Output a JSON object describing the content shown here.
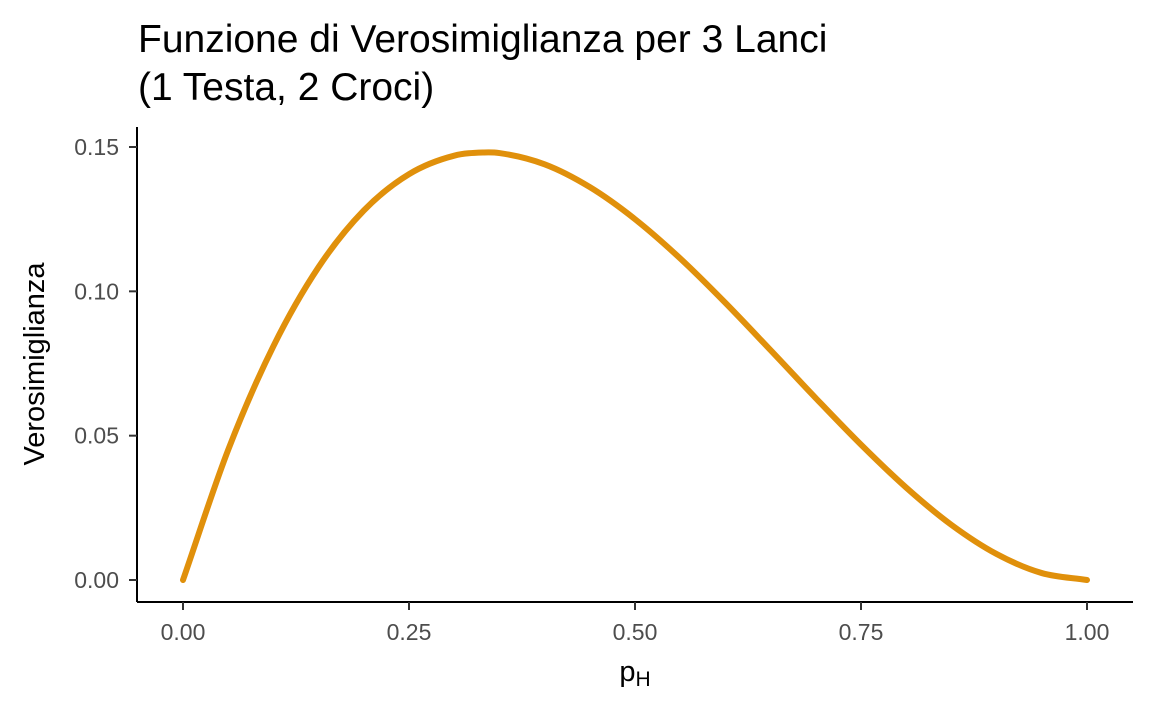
{
  "chart_data": {
    "type": "line",
    "title_lines": [
      "Funzione di Verosimiglianza per 3 Lanci",
      "(1 Testa, 2 Croci)"
    ],
    "xlabel": {
      "base": "p",
      "subscript": "H"
    },
    "ylabel": "Verosimiglianza",
    "xlim": [
      0,
      1
    ],
    "ylim": [
      0,
      0.15
    ],
    "x_ticks": [
      0,
      0.25,
      0.5,
      0.75,
      1.0
    ],
    "x_tick_labels": [
      "0.00",
      "0.25",
      "0.50",
      "0.75",
      "1.00"
    ],
    "y_ticks": [
      0,
      0.05,
      0.1,
      0.15
    ],
    "y_tick_labels": [
      "0.00",
      "0.05",
      "0.10",
      "0.15"
    ],
    "grid": false,
    "series": [
      {
        "color": "#e0900b",
        "x": [
          0.0,
          0.05,
          0.1,
          0.15,
          0.2,
          0.25,
          0.3,
          0.333,
          0.35,
          0.4,
          0.45,
          0.5,
          0.55,
          0.6,
          0.65,
          0.7,
          0.75,
          0.8,
          0.85,
          0.9,
          0.95,
          1.0
        ],
        "y": [
          0.0,
          0.0451,
          0.081,
          0.1084,
          0.128,
          0.1406,
          0.147,
          0.1481,
          0.1479,
          0.144,
          0.1361,
          0.125,
          0.1114,
          0.096,
          0.0796,
          0.063,
          0.0469,
          0.032,
          0.0191,
          0.009,
          0.0024,
          0.0
        ]
      }
    ]
  }
}
